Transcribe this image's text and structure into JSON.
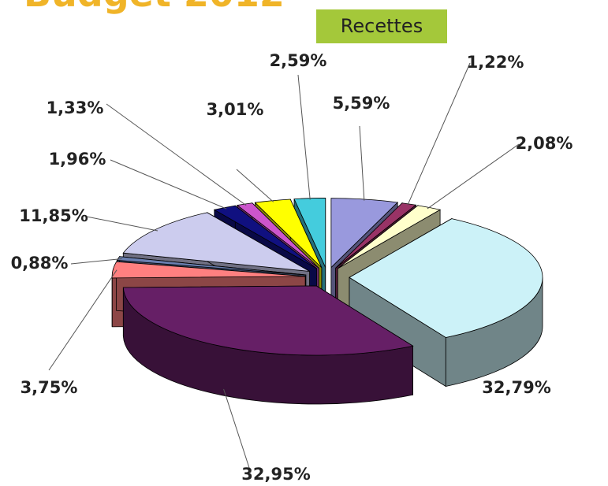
{
  "chart_data": {
    "type": "pie3d",
    "title": "Budget 2012",
    "subtitle": "Recettes",
    "categories": [
      null,
      null,
      null,
      null,
      null,
      null,
      null,
      null,
      null,
      null,
      null,
      null
    ],
    "values": [
      5.59,
      1.22,
      2.08,
      32.79,
      32.95,
      3.75,
      0.88,
      11.85,
      1.96,
      1.33,
      3.01,
      2.59
    ],
    "value_labels": [
      "5,59%",
      "1,22%",
      "2,08%",
      "32,79%",
      "32,95%",
      "3,75%",
      "0,88%",
      "11,85%",
      "1,96%",
      "1,33%",
      "3,01%",
      "2,59%"
    ],
    "colors": [
      "#9999dd",
      "#993366",
      "#ffffcc",
      "#ccf2f8",
      "#661f66",
      "#ff8080",
      "#6a7fb0",
      "#ccccee",
      "#101080",
      "#cc55cc",
      "#ffff00",
      "#44ccdd"
    ]
  }
}
